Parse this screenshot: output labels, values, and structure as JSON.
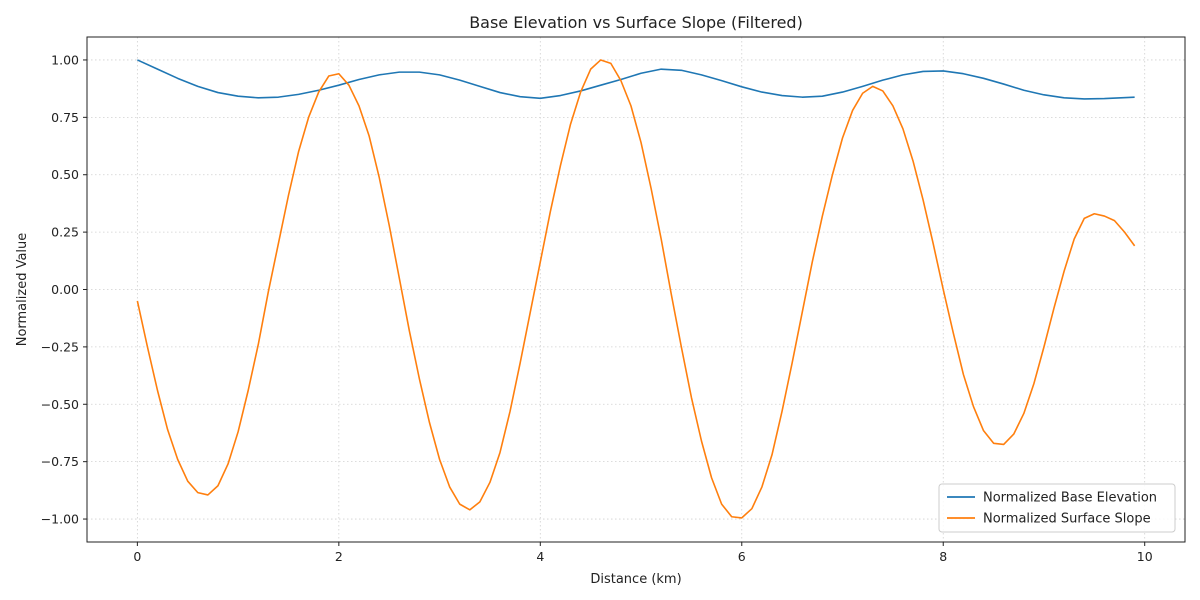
{
  "chart_data": {
    "type": "line",
    "title": "Base Elevation vs Surface Slope (Filtered)",
    "xlabel": "Distance (km)",
    "ylabel": "Normalized Value",
    "xlim": [
      -0.5,
      10.4
    ],
    "ylim": [
      -1.1,
      1.1
    ],
    "xticks": [
      0,
      2,
      4,
      6,
      8,
      10
    ],
    "xtick_labels": [
      "0",
      "2",
      "4",
      "6",
      "8",
      "10"
    ],
    "yticks": [
      -1.0,
      -0.75,
      -0.5,
      -0.25,
      0.0,
      0.25,
      0.5,
      0.75,
      1.0
    ],
    "ytick_labels": [
      "−1.00",
      "−0.75",
      "−0.50",
      "−0.25",
      "0.00",
      "0.25",
      "0.50",
      "0.75",
      "1.00"
    ],
    "grid": true,
    "legend_position": "lower-right",
    "series": [
      {
        "name": "Normalized Base Elevation",
        "color": "#1f77b4",
        "x": [
          0,
          0.2,
          0.4,
          0.6,
          0.8,
          1.0,
          1.2,
          1.4,
          1.6,
          1.8,
          2.0,
          2.2,
          2.4,
          2.6,
          2.8,
          3.0,
          3.2,
          3.4,
          3.6,
          3.8,
          4.0,
          4.2,
          4.4,
          4.6,
          4.8,
          5.0,
          5.2,
          5.4,
          5.6,
          5.8,
          6.0,
          6.2,
          6.4,
          6.6,
          6.8,
          7.0,
          7.2,
          7.4,
          7.6,
          7.8,
          8.0,
          8.2,
          8.4,
          8.6,
          8.8,
          9.0,
          9.2,
          9.4,
          9.6,
          9.9
        ],
        "y": [
          1.0,
          0.96,
          0.92,
          0.885,
          0.858,
          0.842,
          0.835,
          0.838,
          0.85,
          0.868,
          0.89,
          0.915,
          0.935,
          0.947,
          0.947,
          0.935,
          0.912,
          0.885,
          0.858,
          0.84,
          0.833,
          0.845,
          0.865,
          0.89,
          0.915,
          0.942,
          0.96,
          0.955,
          0.935,
          0.91,
          0.883,
          0.86,
          0.845,
          0.838,
          0.842,
          0.86,
          0.885,
          0.912,
          0.935,
          0.95,
          0.952,
          0.94,
          0.92,
          0.895,
          0.868,
          0.848,
          0.835,
          0.83,
          0.832,
          0.838
        ]
      },
      {
        "name": "Normalized Surface Slope",
        "color": "#ff7f0e",
        "x": [
          0,
          0.1,
          0.2,
          0.3,
          0.4,
          0.5,
          0.6,
          0.7,
          0.8,
          0.9,
          1.0,
          1.1,
          1.2,
          1.3,
          1.4,
          1.5,
          1.6,
          1.7,
          1.8,
          1.9,
          2.0,
          2.1,
          2.2,
          2.3,
          2.4,
          2.5,
          2.6,
          2.7,
          2.8,
          2.9,
          3.0,
          3.1,
          3.2,
          3.3,
          3.4,
          3.5,
          3.6,
          3.7,
          3.8,
          3.9,
          4.0,
          4.1,
          4.2,
          4.3,
          4.4,
          4.5,
          4.6,
          4.7,
          4.8,
          4.9,
          5.0,
          5.1,
          5.2,
          5.3,
          5.4,
          5.5,
          5.6,
          5.7,
          5.8,
          5.9,
          6.0,
          6.1,
          6.2,
          6.3,
          6.4,
          6.5,
          6.6,
          6.7,
          6.8,
          6.9,
          7.0,
          7.1,
          7.2,
          7.3,
          7.4,
          7.5,
          7.6,
          7.7,
          7.8,
          7.9,
          8.0,
          8.1,
          8.2,
          8.3,
          8.4,
          8.5,
          8.6,
          8.7,
          8.8,
          8.9,
          9.0,
          9.1,
          9.2,
          9.3,
          9.4,
          9.5,
          9.6,
          9.7,
          9.8,
          9.9
        ],
        "y": [
          -0.05,
          -0.25,
          -0.44,
          -0.61,
          -0.74,
          -0.835,
          -0.885,
          -0.895,
          -0.855,
          -0.76,
          -0.62,
          -0.44,
          -0.24,
          -0.01,
          0.2,
          0.41,
          0.6,
          0.75,
          0.86,
          0.93,
          0.94,
          0.89,
          0.8,
          0.67,
          0.49,
          0.28,
          0.05,
          -0.18,
          -0.39,
          -0.58,
          -0.74,
          -0.86,
          -0.935,
          -0.96,
          -0.925,
          -0.84,
          -0.71,
          -0.53,
          -0.32,
          -0.1,
          0.12,
          0.34,
          0.54,
          0.72,
          0.86,
          0.96,
          1.0,
          0.985,
          0.91,
          0.8,
          0.64,
          0.44,
          0.22,
          -0.02,
          -0.25,
          -0.47,
          -0.66,
          -0.82,
          -0.935,
          -0.99,
          -0.995,
          -0.955,
          -0.86,
          -0.72,
          -0.53,
          -0.32,
          -0.1,
          0.12,
          0.32,
          0.5,
          0.66,
          0.78,
          0.855,
          0.885,
          0.865,
          0.8,
          0.7,
          0.56,
          0.39,
          0.2,
          0.0,
          -0.19,
          -0.37,
          -0.51,
          -0.615,
          -0.67,
          -0.675,
          -0.63,
          -0.54,
          -0.41,
          -0.25,
          -0.08,
          0.08,
          0.22,
          0.31,
          0.33,
          0.32,
          0.3,
          0.25,
          0.19
        ]
      }
    ]
  }
}
